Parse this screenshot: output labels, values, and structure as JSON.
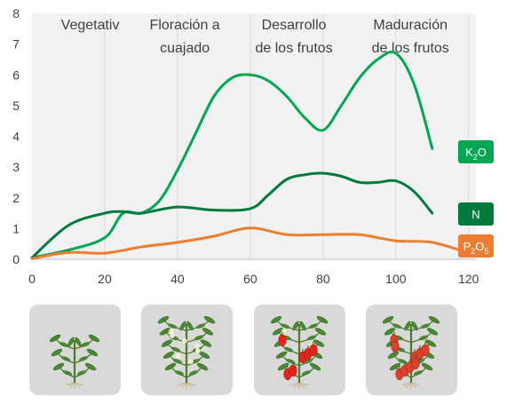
{
  "chart_data": {
    "type": "line",
    "xlim": [
      0,
      122
    ],
    "ylim": [
      0,
      8
    ],
    "xticks": [
      0,
      20,
      40,
      60,
      80,
      100,
      120
    ],
    "yticks": [
      0,
      1,
      2,
      3,
      4,
      5,
      6,
      7,
      8
    ],
    "grid": "vertical",
    "background": "#f2f2f2",
    "stages": [
      {
        "lines": [
          "Vegetativ"
        ],
        "x": 16
      },
      {
        "lines": [
          "Floración a",
          "cuajado"
        ],
        "x": 42
      },
      {
        "lines": [
          "Desarrollo",
          "de los frutos"
        ],
        "x": 72
      },
      {
        "lines": [
          "Maduración",
          "de los frutos"
        ],
        "x": 104
      }
    ],
    "series": [
      {
        "id": "k2o",
        "label_main": "K",
        "label_sub": "2",
        "label_rest": "O",
        "color": "#00a651",
        "x": [
          0,
          10,
          20,
          25,
          30,
          35,
          40,
          45,
          50,
          55,
          60,
          65,
          70,
          75,
          80,
          85,
          90,
          95,
          100,
          105,
          110
        ],
        "values": [
          0.05,
          0.3,
          0.7,
          1.5,
          1.5,
          1.9,
          2.9,
          4.1,
          5.3,
          5.9,
          6.0,
          5.8,
          5.3,
          4.6,
          4.2,
          5.0,
          5.9,
          6.5,
          6.7,
          5.7,
          3.6
        ]
      },
      {
        "id": "n",
        "label_main": "N",
        "label_sub": "",
        "label_rest": "",
        "color": "#007a3d",
        "x": [
          0,
          10,
          20,
          25,
          30,
          40,
          50,
          60,
          65,
          70,
          75,
          80,
          85,
          90,
          95,
          100,
          105,
          110
        ],
        "values": [
          0.05,
          1.1,
          1.5,
          1.55,
          1.5,
          1.7,
          1.6,
          1.65,
          2.1,
          2.6,
          2.75,
          2.8,
          2.7,
          2.5,
          2.5,
          2.55,
          2.2,
          1.5
        ]
      },
      {
        "id": "p2o5",
        "label_main": "P",
        "label_sub": "2",
        "label_rest": "O",
        "label_sub2": "5",
        "color": "#ed7d31",
        "x": [
          0,
          10,
          20,
          30,
          40,
          50,
          60,
          70,
          80,
          90,
          100,
          110,
          120
        ],
        "values": [
          0.02,
          0.22,
          0.2,
          0.4,
          0.55,
          0.75,
          1.02,
          0.8,
          0.8,
          0.8,
          0.6,
          0.55,
          0.2
        ]
      }
    ]
  },
  "plants": [
    {
      "stage": "vegetative",
      "flowers": 0,
      "fruits": 0,
      "fruit_color": ""
    },
    {
      "stage": "flowering",
      "flowers": 7,
      "fruits": 0,
      "fruit_color": ""
    },
    {
      "stage": "fruit-development",
      "flowers": 2,
      "fruits": 6,
      "fruit_color": "#e1251b"
    },
    {
      "stage": "maturation",
      "flowers": 0,
      "fruits": 9,
      "fruit_color": "#d9412a"
    }
  ]
}
